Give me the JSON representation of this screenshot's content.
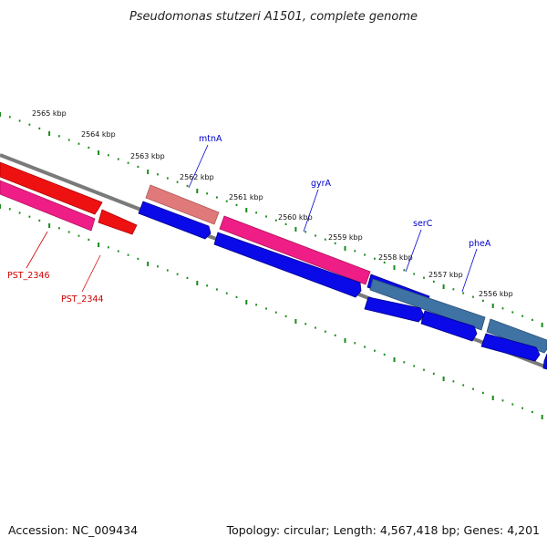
{
  "title": "Pseudomonas stutzeri A1501, complete genome",
  "footer": {
    "accession": "Accession: NC_009434",
    "summary": "Topology: circular; Length: 4,567,418 bp; Genes: 4,201"
  },
  "kbp_labels": [
    "2565 kbp",
    "2564 kbp",
    "2563 kbp",
    "2562 kbp",
    "2561 kbp",
    "2560 kbp",
    "2559 kbp",
    "2558 kbp",
    "2557 kbp",
    "2556 kbp"
  ],
  "gene_labels": [
    {
      "text": "mtnA",
      "color": "#0000cc"
    },
    {
      "text": "gyrA",
      "color": "#0000cc"
    },
    {
      "text": "serC",
      "color": "#0000cc"
    },
    {
      "text": "pheA",
      "color": "#0000cc"
    },
    {
      "text": "PST_2346",
      "color": "#cc0000"
    },
    {
      "text": "PST_2344",
      "color": "#cc0000"
    }
  ],
  "colors": {
    "backbone": "#7a7a7a",
    "ticks": "#1a8a1a",
    "red": "#ee1111",
    "pink": "#ee1e86",
    "salmon": "#e07a7a",
    "blue": "#0a0ae8",
    "steel": "#3f73a3"
  }
}
